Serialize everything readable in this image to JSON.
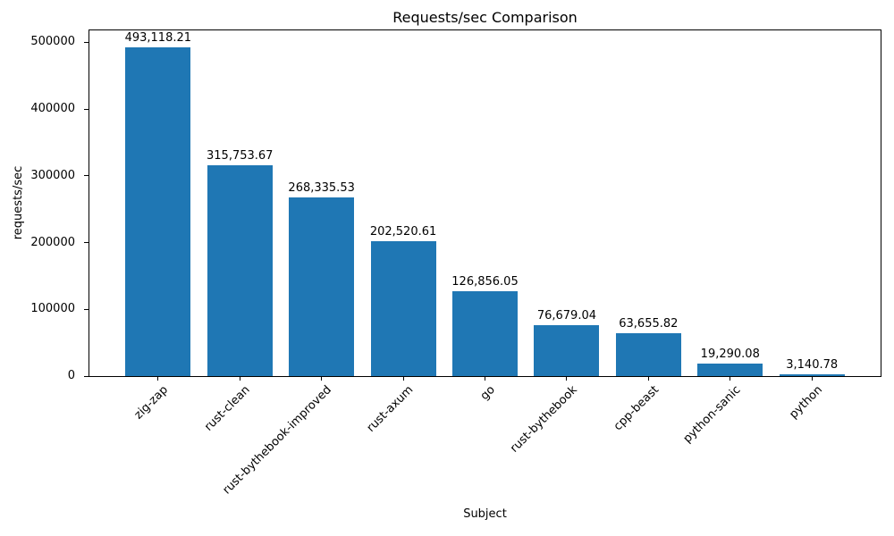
{
  "chart_data": {
    "type": "bar",
    "title": "Requests/sec Comparison",
    "xlabel": "Subject",
    "ylabel": "requests/sec",
    "categories": [
      "zig-zap",
      "rust-clean",
      "rust-bythebook-improved",
      "rust-axum",
      "go",
      "rust-bythebook",
      "cpp-beast",
      "python-sanic",
      "python"
    ],
    "values": [
      493118.21,
      315753.67,
      268335.53,
      202520.61,
      126856.05,
      76679.04,
      63655.82,
      19290.08,
      3140.78
    ],
    "bar_value_labels": [
      "493,118.21",
      "315,753.67",
      "268,335.53",
      "202,520.61",
      "126,856.05",
      "76,679.04",
      "63,655.82",
      "19,290.08",
      "3,140.78"
    ],
    "yticks": [
      0,
      100000,
      200000,
      300000,
      400000,
      500000
    ],
    "ytick_labels": [
      "0",
      "100000",
      "200000",
      "300000",
      "400000",
      "500000"
    ],
    "ylim": [
      0,
      518000
    ],
    "bar_color": "#1f77b4",
    "spine_color": "#000000",
    "grid": false,
    "legend": null,
    "xtick_rotation_deg": 45
  }
}
